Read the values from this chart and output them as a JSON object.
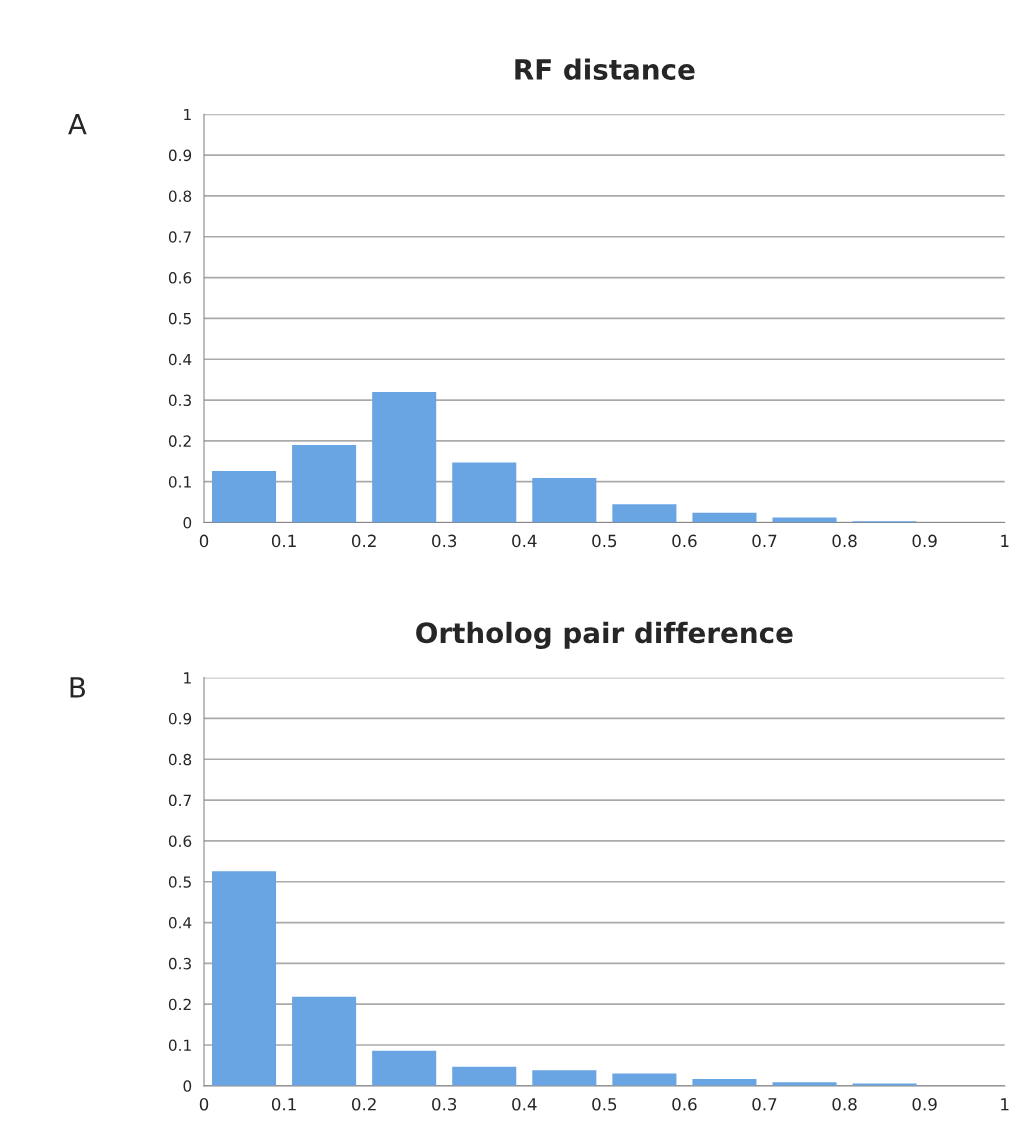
{
  "chart_data": [
    {
      "type": "histogram",
      "title": "RF distance",
      "annotations": [
        "A"
      ],
      "bins": [
        0,
        0.1,
        0.2,
        0.3,
        0.4,
        0.5,
        0.6,
        0.7,
        0.8,
        0.9,
        1
      ],
      "values": [
        0.126,
        0.19,
        0.32,
        0.147,
        0.109,
        0.045,
        0.024,
        0.012,
        0.003,
        0
      ],
      "color": "#6aa5e3",
      "xlim": [
        0,
        1
      ],
      "xticks": [
        0,
        0.1,
        0.2,
        0.3,
        0.4,
        0.5,
        0.6,
        0.7,
        0.8,
        0.9,
        1
      ],
      "ylim": [
        0,
        1
      ],
      "yticks": [
        0,
        0.1,
        0.2,
        0.3,
        0.4,
        0.5,
        0.6,
        0.7,
        0.8,
        0.9,
        1
      ],
      "grid": "y"
    },
    {
      "type": "histogram",
      "title": "Ortholog pair difference",
      "annotations": [
        "B"
      ],
      "bins": [
        0,
        0.1,
        0.2,
        0.3,
        0.4,
        0.5,
        0.6,
        0.7,
        0.8,
        0.9,
        1
      ],
      "values": [
        0.526,
        0.218,
        0.086,
        0.047,
        0.038,
        0.03,
        0.017,
        0.009,
        0.006,
        null
      ],
      "color": "#6aa5e3",
      "xlim": [
        0,
        1
      ],
      "xticks": [
        0,
        0.1,
        0.2,
        0.3,
        0.4,
        0.5,
        0.6,
        0.7,
        0.8,
        0.9,
        1
      ],
      "ylim": [
        0,
        1
      ],
      "yticks": [
        0,
        0.1,
        0.2,
        0.3,
        0.4,
        0.5,
        0.6,
        0.7,
        0.8,
        0.9,
        1
      ],
      "grid": "y"
    }
  ]
}
